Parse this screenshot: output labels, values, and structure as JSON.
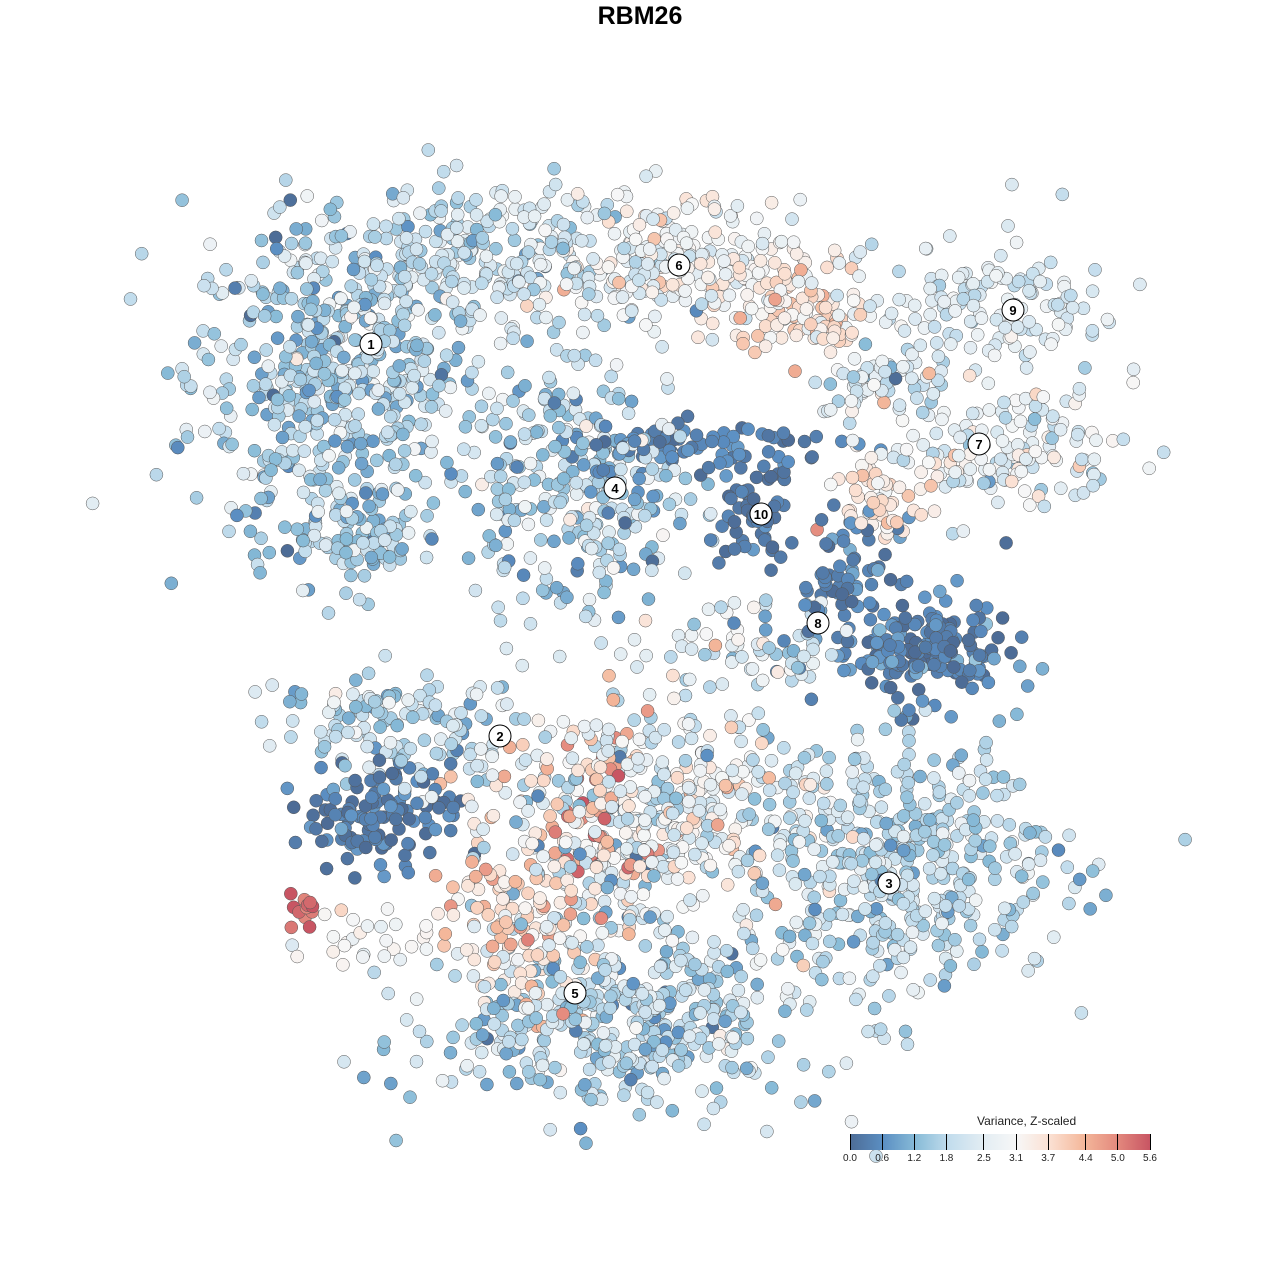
{
  "chart_data": {
    "type": "scatter",
    "title": "RBM26",
    "xlabel": "",
    "ylabel": "",
    "xlim": [
      -64,
      64
    ],
    "ylim": [
      -64,
      64
    ],
    "grid": false,
    "color_scale": {
      "title": "Variance, Z-scaled",
      "range": [
        0,
        5.6
      ],
      "ticks": [
        0.0,
        0.6,
        1.2,
        1.8,
        2.5,
        3.1,
        3.7,
        4.4,
        5.0,
        5.6
      ],
      "tick_labels": [
        "0.0",
        "0.6",
        "1.2",
        "1.8",
        "2.5",
        "3.1",
        "3.7",
        "4.4",
        "5.0",
        "5.6"
      ],
      "colors": [
        "#4d6c96",
        "#5b8fc3",
        "#89bcd8",
        "#c3dded",
        "#e3edf3",
        "#f7f7f7",
        "#fbe0d2",
        "#f4b89b",
        "#e48a7e",
        "#c85563"
      ],
      "placement": "bottom-right"
    },
    "cluster_labels": [
      {
        "label": "1",
        "x": -26.9,
        "y": 29.6
      },
      {
        "label": "6",
        "x": 3.9,
        "y": 37.5
      },
      {
        "label": "9",
        "x": 37.3,
        "y": 33.0
      },
      {
        "label": "7",
        "x": 33.9,
        "y": 19.6
      },
      {
        "label": "4",
        "x": -2.5,
        "y": 15.2
      },
      {
        "label": "10",
        "x": 12.1,
        "y": 12.6
      },
      {
        "label": "8",
        "x": 17.8,
        "y": 1.7
      },
      {
        "label": "2",
        "x": -14.0,
        "y": -9.6
      },
      {
        "label": "3",
        "x": 24.9,
        "y": -24.3
      },
      {
        "label": "5",
        "x": -6.5,
        "y": -35.3
      }
    ],
    "point_groups_fields": [
      "cx",
      "cy",
      "sx",
      "sy",
      "n",
      "mean_value",
      "sd_value"
    ],
    "point_groups": [
      [
        -31,
        26,
        7,
        8,
        500,
        1.6,
        0.6
      ],
      [
        -16,
        38,
        9,
        4,
        300,
        2.0,
        0.5
      ],
      [
        -28,
        10,
        4,
        2.5,
        80,
        1.5,
        0.5
      ],
      [
        4,
        38,
        6,
        3,
        200,
        2.9,
        0.6
      ],
      [
        16,
        33,
        4,
        2.5,
        100,
        3.6,
        0.5
      ],
      [
        24,
        26,
        3,
        2,
        60,
        2.4,
        0.7
      ],
      [
        36,
        19,
        6,
        3,
        150,
        2.6,
        0.6
      ],
      [
        24,
        14,
        3,
        1.5,
        50,
        3.5,
        0.4
      ],
      [
        35,
        33,
        6,
        3.5,
        150,
        2.3,
        0.4
      ],
      [
        -6,
        16,
        6,
        6,
        300,
        1.7,
        0.7
      ],
      [
        6,
        19,
        7,
        1.5,
        80,
        0.4,
        0.3
      ],
      [
        12,
        12.5,
        1.8,
        2.2,
        50,
        0.2,
        0.2
      ],
      [
        21,
        7,
        2.5,
        2.5,
        60,
        0.4,
        0.3
      ],
      [
        28,
        -1,
        4.5,
        2.5,
        180,
        0.4,
        0.4
      ],
      [
        9,
        -1,
        6,
        2.5,
        80,
        2.2,
        0.8
      ],
      [
        -24,
        -8,
        6,
        2.5,
        120,
        1.8,
        0.5
      ],
      [
        -26,
        -17,
        4,
        2.5,
        120,
        0.3,
        0.3
      ],
      [
        0,
        -18,
        9,
        6,
        500,
        2.6,
        0.9
      ],
      [
        -4,
        -18,
        3,
        4,
        40,
        4.8,
        0.5
      ],
      [
        26,
        -22,
        8,
        6,
        450,
        1.8,
        0.5
      ],
      [
        -2,
        -38,
        10,
        4.5,
        450,
        1.8,
        0.6
      ],
      [
        -12,
        -29,
        4,
        4,
        100,
        3.8,
        0.5
      ],
      [
        -34,
        -27,
        1,
        0.8,
        12,
        5.4,
        0.2
      ],
      [
        -28,
        -30,
        3,
        1.5,
        25,
        3.0,
        0.3
      ]
    ]
  }
}
